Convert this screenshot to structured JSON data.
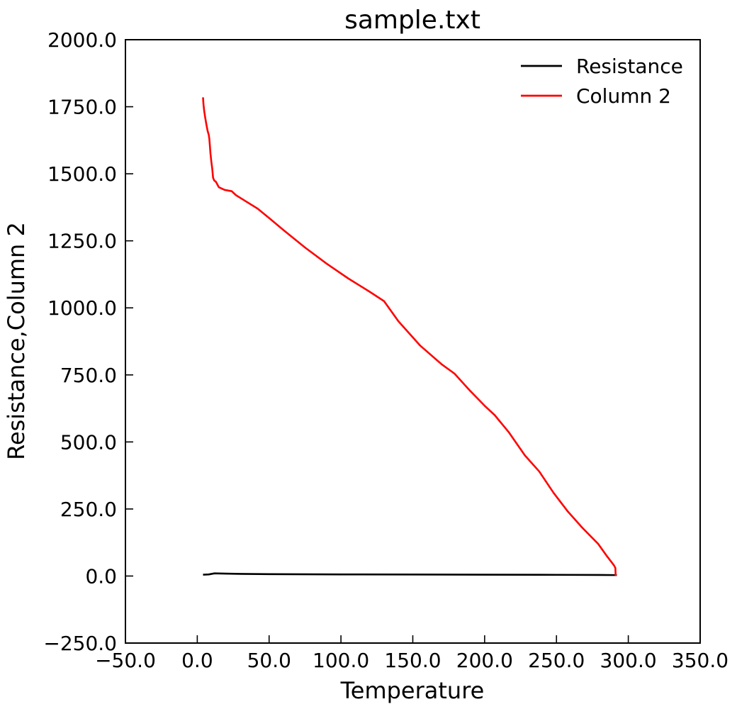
{
  "chart_data": {
    "type": "line",
    "title": "sample.txt",
    "xlabel": "Temperature",
    "ylabel": "Resistance,Column 2",
    "xlim": [
      -50,
      350
    ],
    "ylim": [
      -250,
      2000
    ],
    "xticks": [
      "−50.0",
      "0.0",
      "50.0",
      "100.0",
      "150.0",
      "200.0",
      "250.0",
      "300.0",
      "350.0"
    ],
    "yticks": [
      "−250.0",
      "0.0",
      "250.0",
      "500.0",
      "750.0",
      "1000.0",
      "1250.0",
      "1500.0",
      "1750.0",
      "2000.0"
    ],
    "grid": false,
    "legend_position": "top-right",
    "series": [
      {
        "name": "Resistance",
        "color": "#000000",
        "x": [
          4.0,
          8.0,
          12.0,
          20.0,
          30.0,
          50.0,
          100.0,
          150.0,
          200.0,
          250.0,
          280.0,
          291.0,
          292.0
        ],
        "y": [
          5,
          6,
          10,
          9,
          8,
          7,
          6,
          5.5,
          5,
          4.5,
          4,
          3.5,
          3
        ]
      },
      {
        "name": "Column 2",
        "color": "#ff0000",
        "x": [
          4.0,
          4.3,
          4.8,
          5.5,
          6.3,
          7.2,
          8.0,
          8.4,
          8.7,
          9.2,
          9.8,
          10.4,
          11.0,
          11.8,
          13.0,
          15.0,
          19.0,
          24.0,
          27.0,
          33.0,
          42.0,
          50.0,
          60.0,
          75.0,
          90.0,
          105.0,
          120.0,
          130.0,
          140.0,
          155.0,
          170.0,
          179.0,
          190.0,
          200.0,
          207.0,
          217.0,
          228.0,
          238.0,
          248.0,
          258.0,
          268.0,
          279.0,
          285.0,
          290.0,
          291.0,
          291.2
        ],
        "y": [
          1785,
          1760,
          1735,
          1710,
          1685,
          1660,
          1645,
          1630,
          1610,
          1575,
          1545,
          1520,
          1485,
          1475,
          1470,
          1450,
          1440,
          1435,
          1420,
          1400,
          1370,
          1335,
          1290,
          1225,
          1165,
          1110,
          1060,
          1025,
          950,
          860,
          790,
          755,
          690,
          635,
          600,
          535,
          450,
          390,
          310,
          240,
          180,
          120,
          75,
          40,
          30,
          0
        ]
      }
    ]
  }
}
